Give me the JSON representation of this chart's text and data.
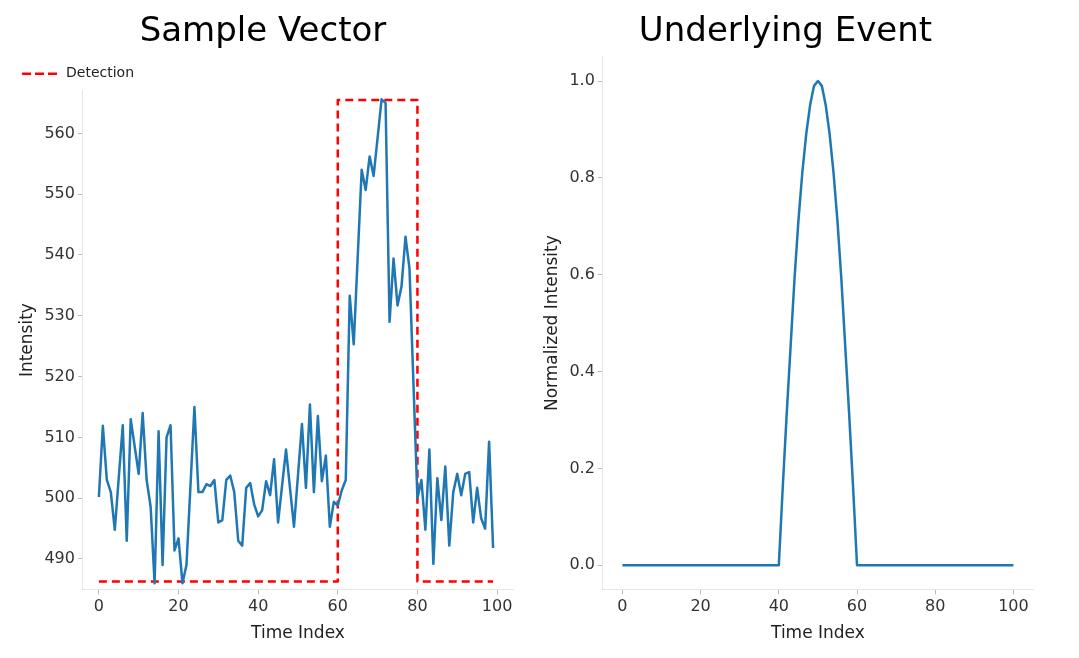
{
  "chart_data": [
    {
      "type": "line",
      "title": "Sample Vector",
      "xlabel": "Time Index",
      "ylabel": "Intensity",
      "xlim": [
        -4,
        104
      ],
      "ylim": [
        485,
        567
      ],
      "xticks": [
        0,
        20,
        40,
        60,
        80,
        100
      ],
      "yticks": [
        490,
        500,
        510,
        520,
        530,
        540,
        550,
        560
      ],
      "grid": false,
      "legend": "top left",
      "marker": "none",
      "series": [
        {
          "color": "#1f77b4",
          "line_style": "solid",
          "x": [
            0,
            1,
            2,
            3,
            4,
            6,
            7,
            8,
            10,
            11,
            12,
            13,
            14,
            15,
            16,
            17,
            18,
            19,
            20,
            21,
            22,
            24,
            25,
            26,
            27,
            28,
            29,
            30,
            31,
            32,
            33,
            34,
            35,
            36,
            37,
            38,
            39,
            40,
            41,
            42,
            43,
            44,
            45,
            47,
            49,
            51,
            52,
            53,
            54,
            55,
            56,
            57,
            58,
            59,
            60,
            61,
            62,
            63,
            64,
            66,
            67,
            68,
            69,
            71,
            72,
            73,
            74,
            75,
            76,
            77,
            78,
            80,
            81,
            82,
            83,
            84,
            85,
            86,
            87,
            88,
            89,
            90,
            91,
            92,
            93,
            94,
            95,
            96,
            97,
            98,
            99
          ],
          "values": [
            500.2,
            511.9,
            503,
            501,
            494.8,
            512,
            493,
            513,
            504,
            514,
            503,
            498.6,
            486,
            511,
            489,
            510,
            512,
            491.4,
            493.4,
            486,
            489,
            515,
            501,
            501,
            502.3,
            502,
            503,
            496,
            496.4,
            503,
            503.7,
            501,
            493,
            492.2,
            501.7,
            502.5,
            499,
            497,
            498,
            502.8,
            500.5,
            506.4,
            496,
            508,
            495.3,
            512.2,
            501.7,
            515.4,
            501,
            513.5,
            502.8,
            507,
            495.3,
            499.4,
            498.8,
            501.3,
            503,
            533.3,
            525.3,
            554,
            550.7,
            556.2,
            553,
            565.6,
            565,
            529,
            539.4,
            531.7,
            534.8,
            543,
            537.8,
            500,
            503,
            494.8,
            508,
            489.2,
            503.3,
            496.4,
            505.2,
            492.2,
            501,
            504,
            500.5,
            504,
            504.3,
            496,
            501.7,
            496.7,
            495,
            509.3,
            491.8
          ]
        },
        {
          "name": "Detection",
          "color": "#ff0000",
          "line_style": "dashed",
          "x": [
            0,
            60,
            60,
            80,
            80,
            99
          ],
          "values": [
            486.3,
            486.3,
            565.5,
            565.5,
            486.3,
            486.3
          ]
        }
      ]
    },
    {
      "type": "line",
      "title": "Underlying Event",
      "xlabel": "Time Index",
      "ylabel": "Normalized Intensity",
      "xlim": [
        -5,
        105
      ],
      "ylim": [
        -0.05,
        1.05
      ],
      "xticks": [
        0,
        20,
        40,
        60,
        80,
        100
      ],
      "yticks": [
        {
          "value": 0,
          "label": "0.0"
        },
        0.2,
        0.4,
        0.6,
        0.8,
        {
          "value": 1,
          "label": "1.0"
        }
      ],
      "grid": false,
      "legend": false,
      "marker": "none",
      "series": [
        {
          "color": "#1f77b4",
          "line_style": "solid",
          "x": [
            0,
            40,
            41,
            42,
            43,
            44,
            45,
            46,
            47,
            48,
            49,
            50,
            51,
            52,
            53,
            54,
            55,
            56,
            57,
            58,
            59,
            60,
            100
          ],
          "values": [
            0,
            0,
            0.16,
            0.31,
            0.45,
            0.59,
            0.71,
            0.81,
            0.89,
            0.95,
            0.99,
            1.0,
            0.99,
            0.95,
            0.89,
            0.81,
            0.71,
            0.59,
            0.45,
            0.31,
            0.16,
            0,
            0
          ]
        }
      ]
    }
  ]
}
